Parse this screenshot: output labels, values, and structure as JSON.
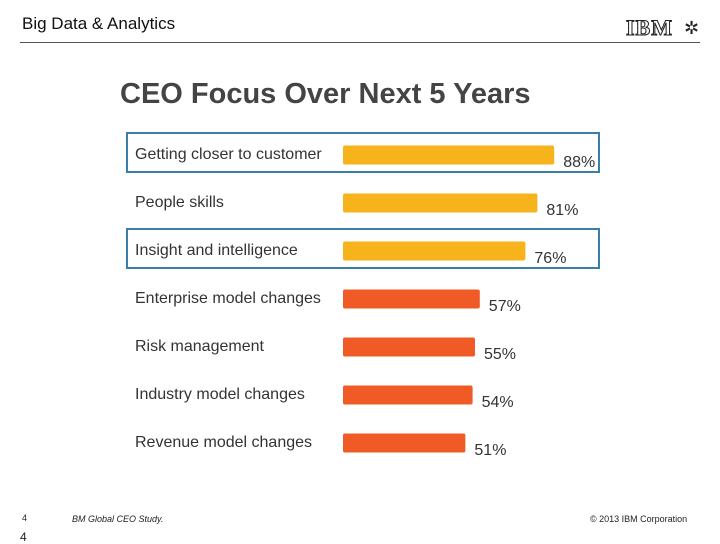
{
  "header": {
    "title": "Big Data & Analytics",
    "logo_text": "IBM",
    "logo_emblem": "✲"
  },
  "chart_data": {
    "type": "bar",
    "orientation": "horizontal",
    "title": "CEO Focus Over Next 5 Years",
    "categories": [
      "Getting closer to customer",
      "People skills",
      "Insight and intelligence",
      "Enterprise model changes",
      "Risk management",
      "Industry model changes",
      "Revenue model changes"
    ],
    "values": [
      88,
      81,
      76,
      57,
      55,
      54,
      51
    ],
    "value_labels": [
      "88%",
      "81%",
      "76%",
      "57%",
      "55%",
      "54%",
      "51%"
    ],
    "bar_colors": [
      "#f7b31c",
      "#f7b31c",
      "#f7b31c",
      "#f05a24",
      "#f05a24",
      "#f05a24",
      "#f05a24"
    ],
    "highlighted": [
      "Getting closer to customer",
      "Insight and intelligence"
    ],
    "highlight_color": "#3b7ea8",
    "xlim": [
      0,
      100
    ],
    "grid": false
  },
  "footer": {
    "page_number": "4",
    "page_mark": "4",
    "source": "BM Global CEO Study.",
    "copyright": "© 2013 IBM Corporation"
  }
}
